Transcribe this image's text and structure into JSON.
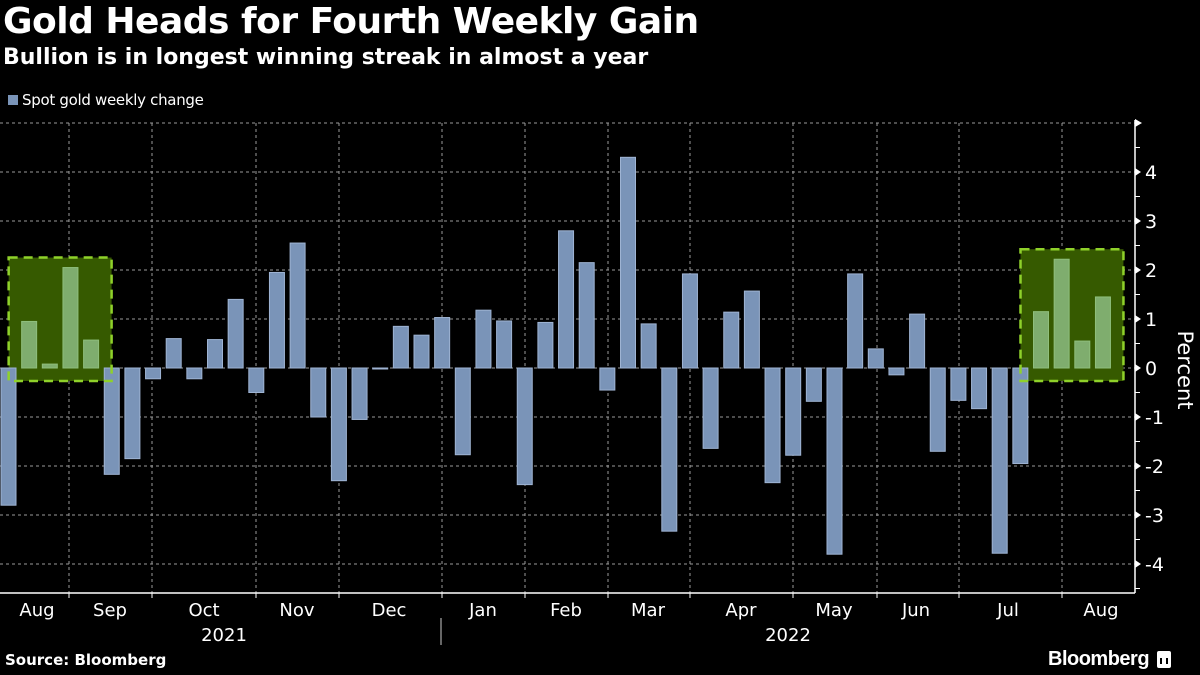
{
  "header": {
    "title": "Gold Heads for Fourth Weekly Gain",
    "subtitle": "Bullion is in longest winning streak in almost a year"
  },
  "footer": {
    "source": "Source: Bloomberg",
    "brand": "Bloomberg",
    "brand_icon": "bloomberg-chart-icon"
  },
  "chart_data": {
    "type": "bar",
    "title": "Gold Heads for Fourth Weekly Gain",
    "subtitle": "Bullion is in longest winning streak in almost a year",
    "xlabel": "",
    "ylabel": "Percent",
    "ylim": [
      -4.5,
      5
    ],
    "yticks": [
      -4,
      -3,
      -2,
      -1,
      0,
      1,
      2,
      3,
      4
    ],
    "ytick_labels": [
      "-4",
      "-3",
      "-2",
      "-1",
      "0",
      "1",
      "2",
      "3",
      "4"
    ],
    "grid": true,
    "legend": {
      "position": "top-left",
      "entries": [
        "Spot gold weekly change"
      ]
    },
    "series": [
      {
        "name": "Spot gold weekly change",
        "color": "#7a94b8",
        "values": [
          -2.8,
          0.95,
          0.08,
          2.05,
          0.57,
          -2.17,
          -1.85,
          -0.22,
          0.6,
          -0.22,
          0.58,
          1.4,
          -0.5,
          1.95,
          2.55,
          -1.0,
          -2.3,
          -1.05,
          -0.02,
          0.85,
          0.67,
          1.03,
          -1.77,
          1.18,
          0.96,
          -2.38,
          0.93,
          2.8,
          2.15,
          -0.45,
          4.3,
          0.9,
          -3.33,
          1.92,
          -1.64,
          1.14,
          1.57,
          -2.34,
          -1.78,
          -0.68,
          -3.8,
          1.92,
          0.39,
          -0.14,
          1.1,
          -1.7,
          -0.66,
          -0.83,
          -3.78,
          -1.95,
          1.15,
          2.22,
          0.55,
          1.45
        ]
      }
    ],
    "x_months": [
      {
        "label": "Aug",
        "start_week": 0
      },
      {
        "label": "Sep",
        "start_week": 3.3
      },
      {
        "label": "Oct",
        "start_week": 7.3
      },
      {
        "label": "Nov",
        "start_week": 12.3
      },
      {
        "label": "Dec",
        "start_week": 16.3
      },
      {
        "label": "Jan",
        "start_week": 21.3
      },
      {
        "label": "Feb",
        "start_week": 25.3
      },
      {
        "label": "Mar",
        "start_week": 29.3
      },
      {
        "label": "Apr",
        "start_week": 33.3
      },
      {
        "label": "May",
        "start_week": 38.3
      },
      {
        "label": "Jun",
        "start_week": 42.3
      },
      {
        "label": "Jul",
        "start_week": 46.3
      },
      {
        "label": "Aug",
        "start_week": 51.3
      }
    ],
    "x_years": [
      {
        "label": "2021",
        "month_range": [
          0,
          5
        ]
      },
      {
        "label": "2022",
        "month_range": [
          5,
          12
        ]
      }
    ],
    "highlights": [
      {
        "label": "earlier-winning-streak",
        "week_range": [
          1,
          4
        ],
        "color": "#365a00",
        "border": "#8fd12a"
      },
      {
        "label": "current-winning-streak",
        "week_range": [
          50,
          53
        ],
        "color": "#365a00",
        "border": "#8fd12a"
      }
    ]
  }
}
